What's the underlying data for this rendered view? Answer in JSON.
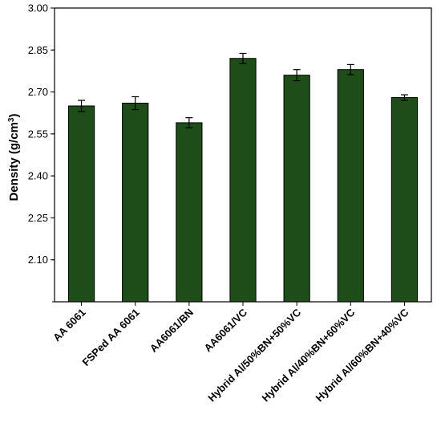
{
  "chart_data": {
    "type": "bar",
    "title": "",
    "xlabel": "",
    "ylabel": "Density (g/cm",
    "ylabel_superscript": "3",
    "ylabel_suffix": ")",
    "ylim": [
      1.95,
      3.0
    ],
    "yticks": [
      "2.10",
      "2.25",
      "2.40",
      "2.55",
      "2.70",
      "2.85",
      "3.00"
    ],
    "categories": [
      "AA 6061",
      "FSPed AA 6061",
      "AA6061/BN",
      "AA6061/VC",
      "Hybrid Al/50%BN+50%VC",
      "Hybrid Al/40%BN+60%VC",
      "Hybrid Al/60%BN+40%VC"
    ],
    "values": [
      2.65,
      2.66,
      2.59,
      2.82,
      2.76,
      2.78,
      2.68
    ],
    "errors": [
      0.02,
      0.023,
      0.018,
      0.018,
      0.02,
      0.018,
      0.01
    ],
    "bar_color": "#1e4d1a",
    "grid": false,
    "legend": "none"
  }
}
